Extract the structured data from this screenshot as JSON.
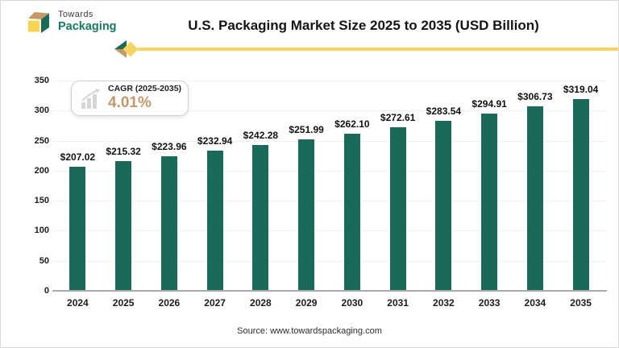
{
  "header": {
    "logo_line1": "Towards",
    "logo_line2": "Packaging",
    "title": "U.S. Packaging Market Size 2025 to 2035 (USD Billion)"
  },
  "cagr": {
    "label": "CAGR (2025-2035)",
    "value": "4.01%"
  },
  "chart_data": {
    "type": "bar",
    "title": "U.S. Packaging Market Size 2025 to 2035 (USD Billion)",
    "categories": [
      "2024",
      "2025",
      "2026",
      "2027",
      "2028",
      "2029",
      "2030",
      "2031",
      "2032",
      "2033",
      "2034",
      "2035"
    ],
    "values": [
      207.02,
      215.32,
      223.96,
      232.94,
      242.28,
      251.99,
      262.1,
      272.61,
      283.54,
      294.91,
      306.73,
      319.04
    ],
    "value_labels": [
      "$207.02",
      "$215.32",
      "$223.96",
      "$232.94",
      "$242.28",
      "$251.99",
      "$262.10",
      "$272.61",
      "$283.54",
      "$294.91",
      "$306.73",
      "$319.04"
    ],
    "xlabel": "",
    "ylabel": "",
    "ylim": [
      0,
      350
    ],
    "yticks": [
      0,
      50,
      100,
      150,
      200,
      250,
      300,
      350
    ],
    "grid": true,
    "legend_position": "none",
    "bar_color": "#1a6a5a"
  },
  "source": "Source: www.towardspackaging.com",
  "colors": {
    "bar": "#1a6a5a",
    "accent_yellow": "#f6d463",
    "accent_tan": "#c49a66",
    "logo_green": "#17795f",
    "cagr_value": "#c3996b"
  }
}
